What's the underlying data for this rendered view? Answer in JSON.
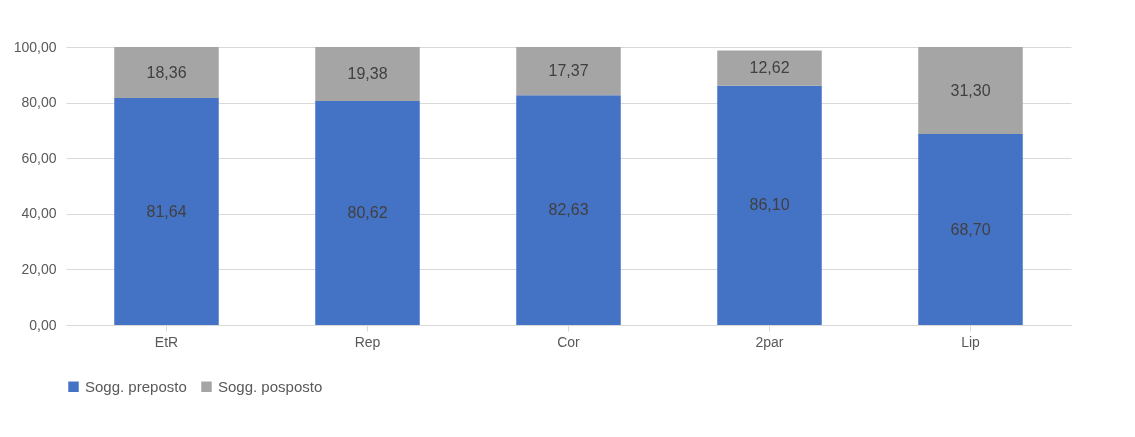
{
  "chart_data": {
    "type": "bar",
    "stacked": true,
    "categories": [
      "EtR",
      "Rep",
      "Cor",
      "2par",
      "Lip"
    ],
    "series": [
      {
        "name": "Sogg. preposto",
        "color": "#4472c4",
        "values": [
          81.64,
          80.62,
          82.63,
          86.1,
          68.7
        ],
        "value_labels": [
          "81,64",
          "80,62",
          "82,63",
          "86,10",
          "68,70"
        ]
      },
      {
        "name": "Sogg. posposto",
        "color": "#a5a5a5",
        "values": [
          18.36,
          19.38,
          17.37,
          12.62,
          31.3
        ],
        "value_labels": [
          "18,36",
          "19,38",
          "17,37",
          "12,62",
          "31,30"
        ]
      }
    ],
    "ylim": [
      0,
      100
    ],
    "yticks": [
      {
        "value": 0,
        "label": "0,00"
      },
      {
        "value": 20,
        "label": "20,00"
      },
      {
        "value": 40,
        "label": "40,00"
      },
      {
        "value": 60,
        "label": "60,00"
      },
      {
        "value": 80,
        "label": "80,00"
      },
      {
        "value": 100,
        "label": "100,00"
      }
    ],
    "grid": "y",
    "legend": "bottom"
  }
}
